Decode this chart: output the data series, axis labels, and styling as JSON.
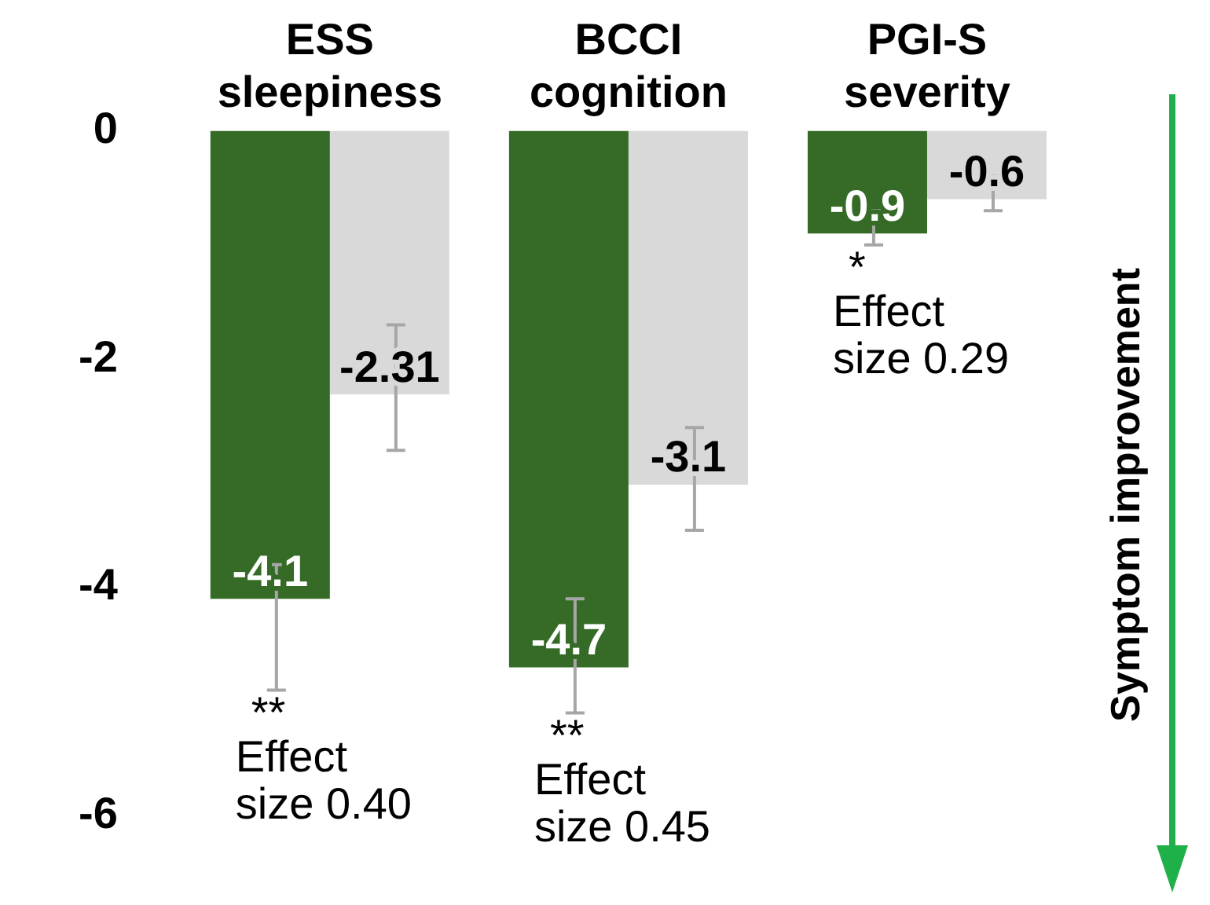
{
  "chart_data": {
    "type": "bar",
    "categories": [
      "ESS\nsleepiness",
      "BCCI\ncognition",
      "PGI-S\nseverity"
    ],
    "series": [
      {
        "color": "#356b27",
        "values": [
          -4.1,
          -4.7,
          -0.9
        ],
        "errors": [
          [
            -4.9,
            -3.8
          ],
          [
            -5.1,
            -4.1
          ],
          [
            -1.0,
            -0.7
          ]
        ]
      },
      {
        "color": "#d9d9d9",
        "values": [
          -2.31,
          -3.1,
          -0.6
        ],
        "errors": [
          [
            -2.8,
            -1.7
          ],
          [
            -3.5,
            -2.6
          ],
          [
            -0.7,
            -0.4
          ]
        ]
      }
    ],
    "ylim": [
      -6,
      0
    ],
    "yticks": [
      0,
      -2,
      -4,
      -6
    ],
    "grid": false,
    "legend": false,
    "data_labels": true,
    "annotations": [
      "**",
      "Effect\nsize 0.40",
      "**",
      "Effect\nsize 0.45",
      "*",
      "Effect\nsize 0.29",
      "Symptom improvement"
    ]
  }
}
